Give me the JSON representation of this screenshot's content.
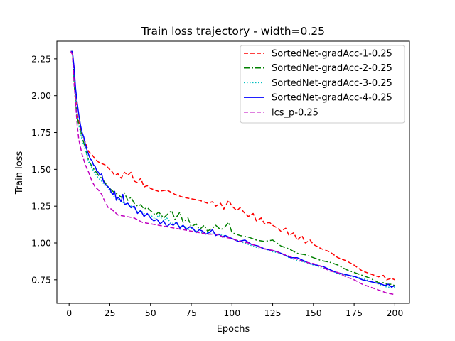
{
  "chart_data": {
    "type": "line",
    "title": "Train loss trajectory - width=0.25",
    "xlabel": "Epochs",
    "ylabel": "Train loss",
    "xlim": [
      -7.5,
      209
    ],
    "ylim": [
      0.59,
      2.37
    ],
    "xticks": [
      0,
      25,
      50,
      75,
      100,
      125,
      150,
      175,
      200
    ],
    "yticks": [
      0.75,
      1.0,
      1.25,
      1.5,
      1.75,
      2.0,
      2.25
    ],
    "ytick_labels": [
      "0.75",
      "1.00",
      "1.25",
      "1.50",
      "1.75",
      "2.00",
      "2.25"
    ],
    "grid": false,
    "legend_position": "top-right",
    "series": [
      {
        "name": "SortedNet-gradAcc-1-0.25",
        "color": "#ff0000",
        "dash": "6,3",
        "x": [
          1,
          2,
          3,
          4,
          5,
          6,
          8,
          10,
          12,
          14,
          16,
          18,
          20,
          22,
          24,
          26,
          28,
          30,
          32,
          34,
          36,
          38,
          40,
          42,
          44,
          46,
          48,
          50,
          55,
          60,
          65,
          70,
          75,
          80,
          85,
          88,
          90,
          93,
          95,
          98,
          100,
          103,
          105,
          108,
          110,
          113,
          115,
          118,
          120,
          123,
          125,
          128,
          130,
          133,
          135,
          138,
          140,
          143,
          145,
          148,
          150,
          155,
          160,
          165,
          170,
          175,
          180,
          185,
          190,
          193,
          195,
          198,
          200
        ],
        "y": [
          2.3,
          2.3,
          2.15,
          1.98,
          1.88,
          1.82,
          1.74,
          1.68,
          1.62,
          1.6,
          1.57,
          1.55,
          1.54,
          1.53,
          1.51,
          1.49,
          1.46,
          1.47,
          1.44,
          1.48,
          1.46,
          1.48,
          1.42,
          1.41,
          1.44,
          1.38,
          1.39,
          1.37,
          1.35,
          1.36,
          1.33,
          1.31,
          1.3,
          1.29,
          1.27,
          1.28,
          1.25,
          1.27,
          1.23,
          1.29,
          1.25,
          1.22,
          1.24,
          1.2,
          1.18,
          1.2,
          1.15,
          1.17,
          1.13,
          1.14,
          1.12,
          1.1,
          1.08,
          1.1,
          1.05,
          1.07,
          1.02,
          1.05,
          1.0,
          1.02,
          0.99,
          0.96,
          0.94,
          0.9,
          0.88,
          0.85,
          0.81,
          0.79,
          0.77,
          0.78,
          0.75,
          0.76,
          0.75
        ]
      },
      {
        "name": "SortedNet-gradAcc-2-0.25",
        "color": "#008000",
        "dash": "8,3,2,3",
        "x": [
          1,
          2,
          3,
          4,
          5,
          6,
          8,
          10,
          12,
          14,
          16,
          18,
          20,
          22,
          24,
          26,
          28,
          30,
          32,
          34,
          36,
          38,
          40,
          42,
          44,
          46,
          48,
          50,
          53,
          55,
          58,
          60,
          63,
          65,
          68,
          70,
          73,
          75,
          78,
          80,
          83,
          85,
          88,
          90,
          93,
          95,
          98,
          100,
          105,
          110,
          115,
          120,
          125,
          130,
          135,
          140,
          145,
          150,
          155,
          160,
          165,
          170,
          175,
          180,
          185,
          190,
          193,
          195,
          198,
          200
        ],
        "y": [
          2.3,
          2.3,
          2.1,
          1.95,
          1.85,
          1.8,
          1.72,
          1.64,
          1.56,
          1.52,
          1.49,
          1.46,
          1.44,
          1.41,
          1.38,
          1.36,
          1.34,
          1.33,
          1.31,
          1.34,
          1.29,
          1.31,
          1.27,
          1.25,
          1.26,
          1.23,
          1.24,
          1.22,
          1.19,
          1.21,
          1.17,
          1.19,
          1.22,
          1.16,
          1.21,
          1.14,
          1.17,
          1.11,
          1.13,
          1.09,
          1.12,
          1.08,
          1.1,
          1.12,
          1.09,
          1.1,
          1.14,
          1.07,
          1.05,
          1.04,
          1.02,
          1.01,
          1.02,
          0.98,
          0.96,
          0.93,
          0.92,
          0.9,
          0.88,
          0.87,
          0.85,
          0.82,
          0.8,
          0.78,
          0.76,
          0.73,
          0.73,
          0.72,
          0.72,
          0.71
        ]
      },
      {
        "name": "SortedNet-gradAcc-3-0.25",
        "color": "#00bfbf",
        "dash": "1.5,2.5",
        "x": [
          1,
          2,
          3,
          4,
          5,
          6,
          8,
          10,
          12,
          14,
          16,
          18,
          20,
          22,
          24,
          26,
          28,
          30,
          32,
          34,
          36,
          38,
          40,
          42,
          44,
          46,
          48,
          50,
          53,
          55,
          58,
          60,
          63,
          65,
          68,
          70,
          73,
          75,
          78,
          80,
          85,
          90,
          95,
          100,
          105,
          110,
          115,
          120,
          125,
          130,
          135,
          140,
          145,
          150,
          155,
          160,
          165,
          170,
          175,
          180,
          185,
          190,
          193,
          195,
          198,
          200
        ],
        "y": [
          2.3,
          2.3,
          2.12,
          1.97,
          1.87,
          1.8,
          1.7,
          1.63,
          1.55,
          1.51,
          1.47,
          1.44,
          1.42,
          1.39,
          1.37,
          1.34,
          1.31,
          1.3,
          1.28,
          1.27,
          1.26,
          1.25,
          1.24,
          1.21,
          1.22,
          1.2,
          1.19,
          1.19,
          1.16,
          1.19,
          1.15,
          1.17,
          1.13,
          1.14,
          1.11,
          1.12,
          1.09,
          1.1,
          1.08,
          1.07,
          1.07,
          1.06,
          1.05,
          1.03,
          1.01,
          0.99,
          0.97,
          0.96,
          0.94,
          0.93,
          0.9,
          0.88,
          0.87,
          0.85,
          0.83,
          0.82,
          0.79,
          0.78,
          0.77,
          0.76,
          0.74,
          0.72,
          0.71,
          0.7,
          0.7,
          0.7
        ]
      },
      {
        "name": "SortedNet-gradAcc-4-0.25",
        "color": "#0000ff",
        "dash": "",
        "x": [
          1,
          2,
          3,
          4,
          5,
          6,
          7,
          8,
          9,
          10,
          11,
          12,
          13,
          14,
          15,
          16,
          17,
          18,
          19,
          20,
          21,
          22,
          23,
          24,
          25,
          26,
          27,
          28,
          29,
          30,
          31,
          32,
          33,
          34,
          36,
          38,
          40,
          42,
          44,
          46,
          48,
          50,
          52,
          54,
          56,
          58,
          60,
          62,
          64,
          66,
          68,
          70,
          72,
          74,
          76,
          78,
          80,
          82,
          84,
          86,
          88,
          90,
          92,
          94,
          96,
          98,
          100,
          104,
          108,
          112,
          116,
          120,
          124,
          128,
          132,
          136,
          140,
          144,
          148,
          152,
          156,
          160,
          164,
          168,
          172,
          176,
          180,
          184,
          188,
          192,
          194,
          196,
          198,
          200
        ],
        "y": [
          2.3,
          2.3,
          2.2,
          2.05,
          1.95,
          1.87,
          1.8,
          1.75,
          1.72,
          1.67,
          1.63,
          1.6,
          1.57,
          1.56,
          1.53,
          1.52,
          1.49,
          1.48,
          1.46,
          1.47,
          1.42,
          1.4,
          1.39,
          1.38,
          1.37,
          1.34,
          1.33,
          1.35,
          1.29,
          1.31,
          1.3,
          1.28,
          1.33,
          1.26,
          1.27,
          1.24,
          1.25,
          1.2,
          1.22,
          1.18,
          1.2,
          1.17,
          1.15,
          1.16,
          1.13,
          1.15,
          1.11,
          1.13,
          1.12,
          1.14,
          1.1,
          1.12,
          1.09,
          1.11,
          1.1,
          1.07,
          1.09,
          1.08,
          1.06,
          1.07,
          1.09,
          1.05,
          1.06,
          1.04,
          1.05,
          1.04,
          1.03,
          1.01,
          1.02,
          0.99,
          0.98,
          0.96,
          0.95,
          0.94,
          0.92,
          0.9,
          0.9,
          0.88,
          0.86,
          0.85,
          0.84,
          0.82,
          0.8,
          0.79,
          0.78,
          0.77,
          0.75,
          0.74,
          0.73,
          0.72,
          0.71,
          0.72,
          0.7,
          0.71
        ]
      },
      {
        "name": "lcs_p-0.25",
        "color": "#bf00bf",
        "dash": "6,3",
        "x": [
          1,
          2,
          3,
          4,
          5,
          6,
          8,
          10,
          12,
          14,
          16,
          18,
          20,
          22,
          24,
          26,
          28,
          30,
          35,
          40,
          45,
          50,
          55,
          60,
          65,
          70,
          75,
          80,
          85,
          90,
          95,
          100,
          105,
          110,
          115,
          120,
          125,
          130,
          135,
          140,
          145,
          150,
          155,
          160,
          165,
          170,
          175,
          180,
          185,
          190,
          195,
          200
        ],
        "y": [
          2.3,
          2.28,
          2.1,
          1.95,
          1.8,
          1.7,
          1.6,
          1.53,
          1.48,
          1.42,
          1.38,
          1.36,
          1.33,
          1.28,
          1.24,
          1.23,
          1.21,
          1.19,
          1.18,
          1.17,
          1.14,
          1.13,
          1.12,
          1.11,
          1.1,
          1.09,
          1.08,
          1.07,
          1.06,
          1.06,
          1.04,
          1.03,
          1.01,
          1.0,
          0.98,
          0.96,
          0.95,
          0.93,
          0.91,
          0.89,
          0.87,
          0.86,
          0.84,
          0.81,
          0.8,
          0.77,
          0.75,
          0.72,
          0.7,
          0.68,
          0.66,
          0.65
        ]
      }
    ]
  }
}
